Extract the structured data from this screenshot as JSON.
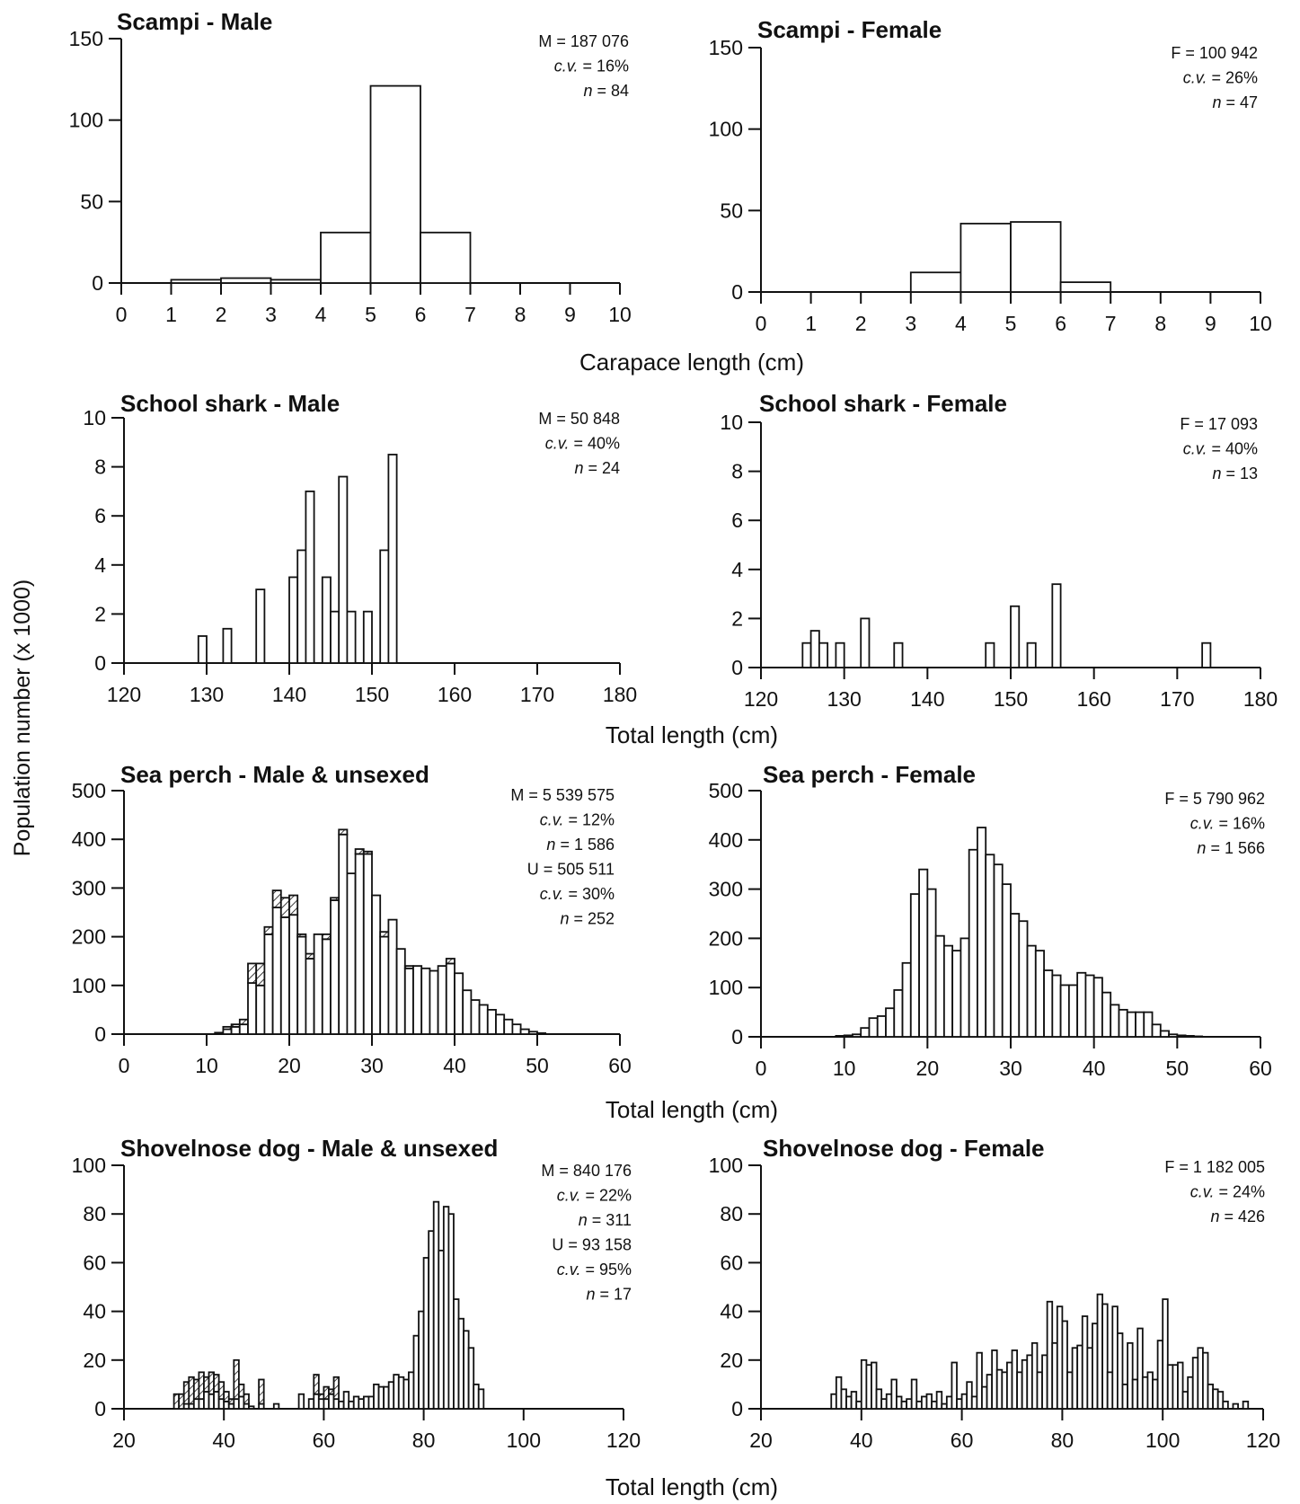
{
  "figure": {
    "ylabel": "Population number (x 1000)",
    "bottom_xlabels": [
      "Carapace length (cm)",
      "Total length (cm)",
      "Total length (cm)",
      "Total length (cm)"
    ]
  },
  "colors": {
    "ink": "#111111",
    "bar_fill": "#ffffff",
    "hatch": "#111111"
  },
  "chart_data": [
    {
      "type": "bar",
      "title": "Scampi - Male",
      "xlabel": "Carapace length (cm)",
      "ylabel": "Population number (x 1000)",
      "xlim": [
        0,
        10
      ],
      "ylim": [
        0,
        150
      ],
      "xticks": [
        0,
        1,
        2,
        3,
        4,
        5,
        6,
        7,
        8,
        9,
        10
      ],
      "yticks": [
        0,
        50,
        100,
        150
      ],
      "bin_width": 1,
      "x": [
        0,
        1,
        2,
        3,
        4,
        5,
        6,
        7,
        8,
        9
      ],
      "series": [
        {
          "name": "M",
          "values": [
            0,
            2,
            3,
            2,
            31,
            121,
            31,
            0,
            0,
            0
          ]
        }
      ],
      "stats": [
        {
          "label": "M",
          "value": "187 076"
        },
        {
          "label": "c.v.",
          "value": "16%"
        },
        {
          "label": "n",
          "value": "84"
        }
      ]
    },
    {
      "type": "bar",
      "title": "Scampi - Female",
      "xlabel": "Carapace length (cm)",
      "ylabel": "Population number (x 1000)",
      "xlim": [
        0,
        10
      ],
      "ylim": [
        0,
        150
      ],
      "xticks": [
        0,
        1,
        2,
        3,
        4,
        5,
        6,
        7,
        8,
        9,
        10
      ],
      "yticks": [
        0,
        50,
        100,
        150
      ],
      "bin_width": 1,
      "x": [
        0,
        1,
        2,
        3,
        4,
        5,
        6,
        7,
        8,
        9
      ],
      "series": [
        {
          "name": "F",
          "values": [
            0,
            0,
            0,
            12,
            42,
            43,
            6,
            0,
            0,
            0
          ]
        }
      ],
      "stats": [
        {
          "label": "F",
          "value": "100 942"
        },
        {
          "label": "c.v.",
          "value": "26%"
        },
        {
          "label": "n",
          "value": "47"
        }
      ]
    },
    {
      "type": "bar",
      "title": "School shark - Male",
      "xlabel": "Total length (cm)",
      "ylabel": "Population number (x 1000)",
      "xlim": [
        120,
        180
      ],
      "ylim": [
        0,
        10
      ],
      "xticks": [
        120,
        130,
        140,
        150,
        160,
        170,
        180
      ],
      "yticks": [
        0,
        2,
        4,
        6,
        8,
        10
      ],
      "bin_width": 1,
      "x": [
        129,
        132,
        136,
        140,
        141,
        142,
        144,
        145,
        146,
        147,
        149,
        151,
        152
      ],
      "series": [
        {
          "name": "M",
          "values": [
            1.1,
            1.4,
            3.0,
            3.5,
            4.6,
            7.0,
            3.5,
            2.1,
            7.6,
            2.1,
            2.1,
            4.6,
            8.5
          ]
        }
      ],
      "stats": [
        {
          "label": "M",
          "value": "50 848"
        },
        {
          "label": "c.v.",
          "value": "40%"
        },
        {
          "label": "n",
          "value": "24"
        }
      ]
    },
    {
      "type": "bar",
      "title": "School shark - Female",
      "xlabel": "Total length (cm)",
      "ylabel": "Population number (x 1000)",
      "xlim": [
        120,
        180
      ],
      "ylim": [
        0,
        10
      ],
      "xticks": [
        120,
        130,
        140,
        150,
        160,
        170,
        180
      ],
      "yticks": [
        0,
        2,
        4,
        6,
        8,
        10
      ],
      "bin_width": 1,
      "x": [
        125,
        126,
        127,
        129,
        132,
        136,
        147,
        150,
        152,
        155,
        173
      ],
      "series": [
        {
          "name": "F",
          "values": [
            1.0,
            1.5,
            1.0,
            1.0,
            2.0,
            1.0,
            1.0,
            2.5,
            1.0,
            3.4,
            1.0
          ]
        }
      ],
      "stats": [
        {
          "label": "F",
          "value": "17 093"
        },
        {
          "label": "c.v.",
          "value": "40%"
        },
        {
          "label": "n",
          "value": "13"
        }
      ]
    },
    {
      "type": "bar",
      "title": "Sea perch - Male & unsexed",
      "xlabel": "Total length (cm)",
      "ylabel": "Population number (x 1000)",
      "xlim": [
        0,
        60
      ],
      "ylim": [
        0,
        500
      ],
      "xticks": [
        0,
        10,
        20,
        30,
        40,
        50,
        60
      ],
      "yticks": [
        0,
        100,
        200,
        300,
        400,
        500
      ],
      "bin_width": 1,
      "stacked": true,
      "x": [
        11,
        12,
        13,
        14,
        15,
        16,
        17,
        18,
        19,
        20,
        21,
        22,
        23,
        24,
        25,
        26,
        27,
        28,
        29,
        30,
        31,
        32,
        33,
        34,
        35,
        36,
        37,
        38,
        39,
        40,
        41,
        42,
        43,
        44,
        45,
        46,
        47,
        48,
        49,
        50
      ],
      "series": [
        {
          "name": "M",
          "values": [
            3,
            10,
            15,
            20,
            105,
            100,
            205,
            260,
            240,
            245,
            200,
            155,
            205,
            195,
            275,
            410,
            330,
            370,
            370,
            285,
            200,
            235,
            175,
            135,
            140,
            135,
            130,
            140,
            145,
            125,
            90,
            70,
            60,
            50,
            40,
            30,
            20,
            10,
            5,
            2
          ]
        },
        {
          "name": "U",
          "values": [
            0,
            5,
            5,
            10,
            40,
            45,
            15,
            35,
            40,
            40,
            5,
            10,
            0,
            10,
            5,
            10,
            0,
            10,
            5,
            0,
            10,
            0,
            0,
            5,
            0,
            0,
            0,
            0,
            10,
            0,
            0,
            0,
            0,
            0,
            0,
            0,
            0,
            0,
            0,
            0
          ]
        }
      ],
      "stats": [
        {
          "label": "M",
          "value": "5 539 575"
        },
        {
          "label": "c.v.",
          "value": "12%"
        },
        {
          "label": "n",
          "value": "1 586"
        },
        {
          "label": "U",
          "value": "505 511"
        },
        {
          "label": "c.v.",
          "value": "30%"
        },
        {
          "label": "n",
          "value": "252"
        }
      ]
    },
    {
      "type": "bar",
      "title": "Sea perch - Female",
      "xlabel": "Total length (cm)",
      "ylabel": "Population number (x 1000)",
      "xlim": [
        0,
        60
      ],
      "ylim": [
        0,
        500
      ],
      "xticks": [
        0,
        10,
        20,
        30,
        40,
        50,
        60
      ],
      "yticks": [
        0,
        100,
        200,
        300,
        400,
        500
      ],
      "bin_width": 1,
      "x": [
        9,
        10,
        11,
        12,
        13,
        14,
        15,
        16,
        17,
        18,
        19,
        20,
        21,
        22,
        23,
        24,
        25,
        26,
        27,
        28,
        29,
        30,
        31,
        32,
        33,
        34,
        35,
        36,
        37,
        38,
        39,
        40,
        41,
        42,
        43,
        44,
        45,
        46,
        47,
        48,
        49,
        50,
        51,
        52
      ],
      "series": [
        {
          "name": "F",
          "values": [
            2,
            3,
            5,
            18,
            38,
            42,
            58,
            95,
            150,
            290,
            340,
            300,
            205,
            185,
            175,
            200,
            380,
            425,
            370,
            350,
            310,
            250,
            235,
            185,
            175,
            135,
            125,
            105,
            105,
            130,
            125,
            120,
            90,
            65,
            55,
            50,
            50,
            50,
            25,
            12,
            5,
            3,
            2,
            1
          ]
        }
      ],
      "stats": [
        {
          "label": "F",
          "value": "5 790 962"
        },
        {
          "label": "c.v.",
          "value": "16%"
        },
        {
          "label": "n",
          "value": "1 566"
        }
      ]
    },
    {
      "type": "bar",
      "title": "Shovelnose dog - Male & unsexed",
      "xlabel": "Total length (cm)",
      "ylabel": "Population number (x 1000)",
      "xlim": [
        20,
        120
      ],
      "ylim": [
        0,
        100
      ],
      "xticks": [
        20,
        40,
        60,
        80,
        100,
        120
      ],
      "yticks": [
        0,
        20,
        40,
        60,
        80,
        100
      ],
      "bin_width": 1,
      "stacked": true,
      "x": [
        30,
        31,
        32,
        33,
        34,
        35,
        36,
        37,
        38,
        39,
        40,
        41,
        42,
        43,
        44,
        45,
        47,
        50,
        55,
        57,
        58,
        59,
        60,
        61,
        62,
        63,
        64,
        65,
        66,
        67,
        68,
        69,
        70,
        71,
        72,
        73,
        74,
        75,
        76,
        77,
        78,
        79,
        80,
        81,
        82,
        83,
        84,
        85,
        86,
        87,
        88,
        89,
        90,
        91
      ],
      "series": [
        {
          "name": "M",
          "values": [
            0,
            0,
            2,
            2,
            4,
            4,
            7,
            6,
            7,
            4,
            3,
            2,
            4,
            5,
            2,
            1,
            2,
            2,
            6,
            4,
            6,
            4,
            4,
            6,
            4,
            3,
            7,
            3,
            5,
            4,
            5,
            5,
            10,
            9,
            9,
            11,
            14,
            13,
            12,
            15,
            30,
            40,
            62,
            73,
            85,
            65,
            83,
            80,
            45,
            37,
            32,
            25,
            10,
            8
          ]
        },
        {
          "name": "U",
          "values": [
            6,
            6,
            9,
            11,
            8,
            11,
            6,
            9,
            7,
            7,
            4,
            2,
            16,
            5,
            4,
            0,
            10,
            0,
            0,
            0,
            8,
            2,
            5,
            2,
            9,
            0,
            0,
            0,
            0,
            0,
            0,
            0,
            0,
            0,
            0,
            0,
            0,
            0,
            0,
            0,
            0,
            0,
            0,
            0,
            0,
            0,
            0,
            0,
            0,
            0,
            0,
            0,
            0,
            0
          ]
        }
      ],
      "stats": [
        {
          "label": "M",
          "value": "840 176"
        },
        {
          "label": "c.v.",
          "value": "22%"
        },
        {
          "label": "n",
          "value": "311"
        },
        {
          "label": "U",
          "value": "93 158"
        },
        {
          "label": "c.v.",
          "value": "95%"
        },
        {
          "label": "n",
          "value": "17"
        }
      ]
    },
    {
      "type": "bar",
      "title": "Shovelnose dog - Female",
      "xlabel": "Total length (cm)",
      "ylabel": "Population number (x 1000)",
      "xlim": [
        20,
        120
      ],
      "ylim": [
        0,
        100
      ],
      "xticks": [
        20,
        40,
        60,
        80,
        100,
        120
      ],
      "yticks": [
        0,
        20,
        40,
        60,
        80,
        100
      ],
      "bin_width": 1,
      "x": [
        34,
        35,
        36,
        37,
        38,
        39,
        40,
        41,
        42,
        43,
        44,
        45,
        46,
        47,
        48,
        49,
        50,
        51,
        52,
        53,
        54,
        55,
        56,
        57,
        58,
        59,
        60,
        61,
        62,
        63,
        64,
        65,
        66,
        67,
        68,
        69,
        70,
        71,
        72,
        73,
        74,
        75,
        76,
        77,
        78,
        79,
        80,
        81,
        82,
        83,
        84,
        85,
        86,
        87,
        88,
        89,
        90,
        91,
        92,
        93,
        94,
        95,
        96,
        97,
        98,
        99,
        100,
        101,
        102,
        103,
        104,
        105,
        106,
        107,
        108,
        109,
        110,
        111,
        112,
        113,
        114,
        115,
        116
      ],
      "series": [
        {
          "name": "F",
          "values": [
            6,
            13,
            8,
            5,
            7,
            3,
            20,
            18,
            19,
            8,
            4,
            6,
            12,
            5,
            3,
            4,
            12,
            3,
            5,
            6,
            3,
            7,
            2,
            5,
            19,
            4,
            6,
            11,
            5,
            23,
            9,
            14,
            24,
            16,
            15,
            19,
            24,
            15,
            20,
            22,
            27,
            15,
            22,
            44,
            27,
            42,
            36,
            15,
            25,
            26,
            38,
            25,
            35,
            47,
            43,
            15,
            42,
            31,
            10,
            27,
            12,
            33,
            13,
            15,
            12,
            28,
            45,
            18,
            18,
            19,
            7,
            13,
            21,
            25,
            23,
            10,
            8,
            7,
            3,
            0,
            2,
            0,
            3
          ]
        }
      ],
      "stats": [
        {
          "label": "F",
          "value": "1 182 005"
        },
        {
          "label": "c.v.",
          "value": "24%"
        },
        {
          "label": "n",
          "value": "426"
        }
      ]
    }
  ]
}
